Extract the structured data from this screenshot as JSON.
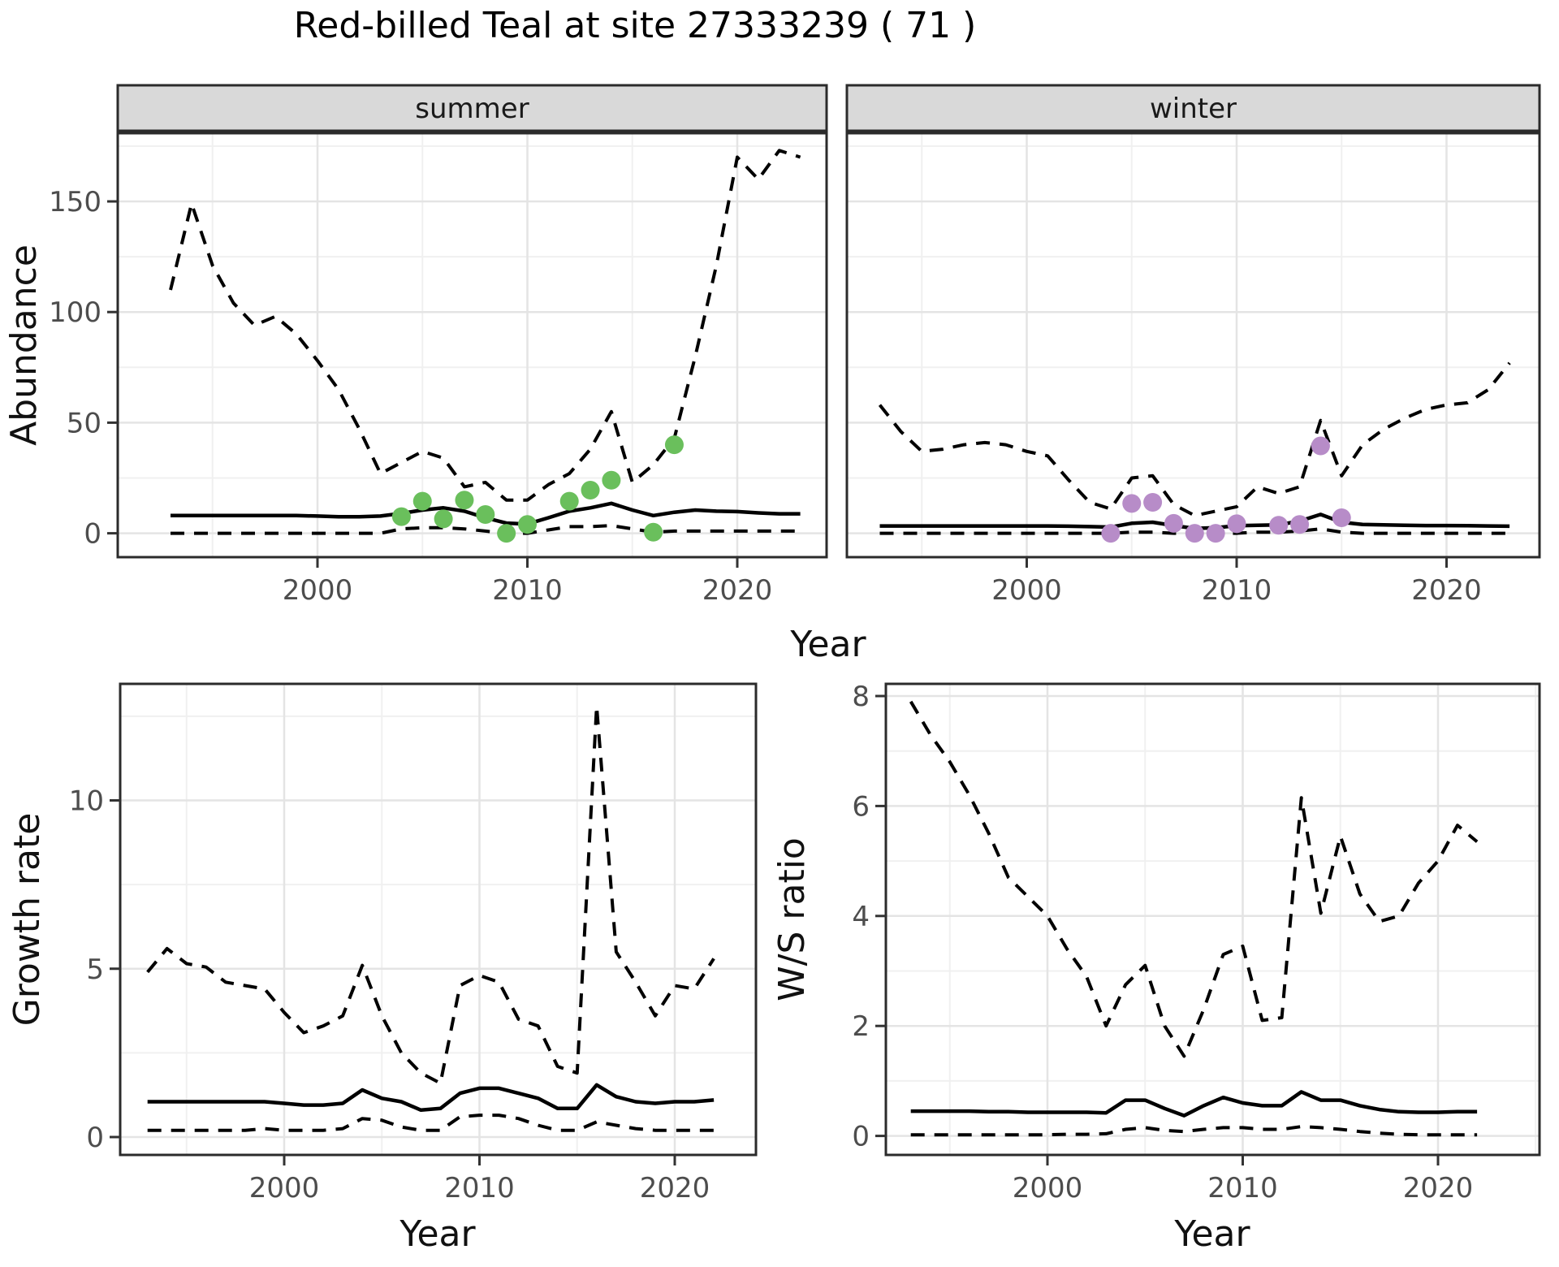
{
  "chart_data": {
    "type": "line",
    "title": "Red-billed Teal at site 27333239 ( 71 )",
    "xlabel": "Year",
    "xticks": [
      2000,
      2010,
      2020
    ],
    "xminor": [
      1995,
      2005,
      2015,
      2025
    ],
    "legend_position": "none",
    "grid": "on",
    "colors": {
      "line": "#000000",
      "grid_major": "#e4e4e4",
      "grid_minor": "#f0f0f0",
      "border": "#2b2b2b",
      "strip_fill": "#d9d9d9",
      "tick_text": "#4d4d4d",
      "axis_text": "#111111",
      "summer_points": "#6abf5c",
      "winter_points": "#b78cc8"
    },
    "panels": [
      {
        "id": "abundance-summer",
        "facet": "summer",
        "ylabel": "Abundance",
        "yticks": [
          0,
          50,
          100,
          150
        ],
        "yminor": [
          25,
          75,
          125,
          175
        ],
        "x0": 1993,
        "series": {
          "upper": [
            110,
            149,
            121,
            104,
            94,
            98,
            90,
            78,
            65,
            47,
            27,
            32,
            37,
            34,
            21,
            23,
            15,
            15,
            22,
            27,
            38,
            55,
            23,
            31,
            43,
            80,
            121,
            170,
            160,
            173,
            170
          ],
          "median": [
            8,
            8,
            8,
            8,
            8,
            8,
            8,
            7.8,
            7.5,
            7.5,
            7.8,
            9,
            10.5,
            11.5,
            10,
            7,
            4.6,
            4.2,
            7,
            10,
            11.5,
            13.5,
            10.5,
            8,
            9.5,
            10.5,
            10,
            9.8,
            9.2,
            8.8,
            8.8
          ],
          "lower": [
            0,
            0,
            0,
            0,
            0,
            0,
            0,
            0,
            0,
            0,
            0,
            2,
            2.5,
            2.5,
            2,
            1,
            0,
            0,
            1.5,
            3,
            3,
            3.5,
            2,
            0.5,
            1,
            1,
            1,
            1,
            1,
            1,
            1
          ]
        },
        "points": {
          "years": [
            2004,
            2005,
            2006,
            2007,
            2008,
            2009,
            2010,
            2012,
            2013,
            2014,
            2016,
            2017
          ],
          "values": [
            7.5,
            14.5,
            6.5,
            15,
            8.5,
            0,
            4,
            14.5,
            19.5,
            24,
            0.5,
            40
          ],
          "color": "#6abf5c"
        }
      },
      {
        "id": "abundance-winter",
        "facet": "winter",
        "ylabel": "Abundance",
        "yticks": [
          0,
          50,
          100,
          150
        ],
        "yminor": [
          25,
          75,
          125,
          175
        ],
        "x0": 1993,
        "series": {
          "upper": [
            58,
            46,
            37,
            38,
            40,
            41,
            40,
            37,
            35,
            24,
            14,
            11,
            25,
            26,
            13,
            8,
            10,
            12,
            21,
            18,
            21,
            51,
            26,
            40,
            47,
            52,
            56,
            58,
            59,
            65,
            77
          ],
          "median": [
            3.3,
            3.3,
            3.3,
            3.3,
            3.3,
            3.3,
            3.3,
            3.3,
            3.3,
            3.2,
            3,
            2.8,
            4.5,
            5,
            3.5,
            2.2,
            2.5,
            3.4,
            3.6,
            3.8,
            5.5,
            8.5,
            5,
            4,
            3.8,
            3.6,
            3.5,
            3.5,
            3.4,
            3.3,
            3.2
          ],
          "lower": [
            0,
            0,
            0,
            0,
            0,
            0,
            0,
            0,
            0,
            0,
            0,
            0,
            0.5,
            0.5,
            0,
            0,
            0,
            0,
            0.5,
            0.5,
            1,
            2,
            0.5,
            0,
            0,
            0,
            0,
            0,
            0,
            0,
            0
          ]
        },
        "points": {
          "years": [
            2004,
            2005,
            2006,
            2007,
            2008,
            2009,
            2010,
            2012,
            2013,
            2014,
            2015
          ],
          "values": [
            0,
            13.5,
            14,
            4.5,
            0,
            0,
            4.3,
            3.6,
            4,
            39.5,
            7
          ],
          "color": "#b78cc8"
        }
      },
      {
        "id": "growth-rate",
        "facet": null,
        "ylabel": "Growth rate",
        "yticks": [
          0,
          5,
          10
        ],
        "yminor": [
          2.5,
          7.5,
          12.5
        ],
        "x0": 1993,
        "series": {
          "upper": [
            4.9,
            5.6,
            5.15,
            5.05,
            4.6,
            4.5,
            4.4,
            3.7,
            3.1,
            3.3,
            3.6,
            5.1,
            3.6,
            2.5,
            1.9,
            1.6,
            4.5,
            4.8,
            4.6,
            3.5,
            3.3,
            2.1,
            1.9,
            12.8,
            5.5,
            4.6,
            3.6,
            4.5,
            4.4,
            5.3
          ],
          "median": [
            1.05,
            1.05,
            1.05,
            1.05,
            1.05,
            1.05,
            1.05,
            1.0,
            0.95,
            0.95,
            1.0,
            1.4,
            1.15,
            1.05,
            0.8,
            0.85,
            1.3,
            1.45,
            1.45,
            1.3,
            1.15,
            0.85,
            0.85,
            1.55,
            1.2,
            1.05,
            1.0,
            1.05,
            1.05,
            1.1
          ],
          "lower": [
            0.2,
            0.2,
            0.2,
            0.2,
            0.2,
            0.2,
            0.25,
            0.2,
            0.2,
            0.2,
            0.25,
            0.55,
            0.5,
            0.3,
            0.2,
            0.2,
            0.6,
            0.65,
            0.65,
            0.55,
            0.35,
            0.2,
            0.2,
            0.45,
            0.35,
            0.25,
            0.2,
            0.2,
            0.2,
            0.2
          ]
        },
        "points": null
      },
      {
        "id": "ws-ratio",
        "facet": null,
        "ylabel": "W/S ratio",
        "yticks": [
          0,
          2,
          4,
          6,
          8
        ],
        "yminor": [
          1,
          3,
          5,
          7
        ],
        "x0": 1993,
        "series": {
          "upper": [
            7.9,
            7.3,
            6.8,
            6.2,
            5.5,
            4.7,
            4.35,
            4.0,
            3.4,
            2.9,
            2.0,
            2.75,
            3.1,
            2.0,
            1.45,
            2.3,
            3.3,
            3.45,
            2.1,
            2.15,
            6.15,
            4.05,
            5.45,
            4.4,
            3.9,
            4.0,
            4.6,
            5.0,
            5.65,
            5.35
          ],
          "median": [
            0.45,
            0.45,
            0.45,
            0.45,
            0.44,
            0.44,
            0.43,
            0.43,
            0.43,
            0.43,
            0.42,
            0.65,
            0.65,
            0.5,
            0.37,
            0.55,
            0.7,
            0.6,
            0.55,
            0.55,
            0.8,
            0.65,
            0.65,
            0.55,
            0.48,
            0.44,
            0.43,
            0.43,
            0.44,
            0.44
          ],
          "lower": [
            0.02,
            0.02,
            0.02,
            0.02,
            0.02,
            0.02,
            0.02,
            0.02,
            0.03,
            0.03,
            0.04,
            0.12,
            0.15,
            0.1,
            0.08,
            0.12,
            0.15,
            0.15,
            0.12,
            0.12,
            0.17,
            0.15,
            0.12,
            0.08,
            0.05,
            0.03,
            0.02,
            0.02,
            0.02,
            0.02
          ]
        },
        "points": null
      }
    ]
  }
}
